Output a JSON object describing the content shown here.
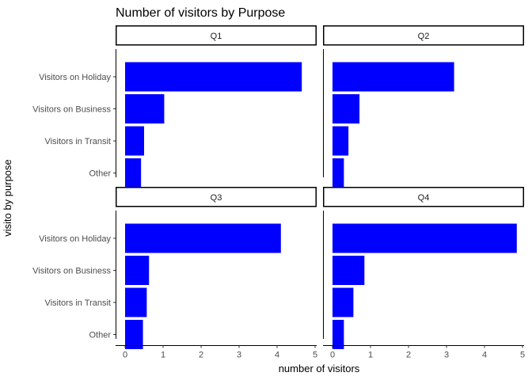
{
  "chart_data": {
    "type": "bar",
    "orientation": "horizontal",
    "title": "Number of visitors by Purpose",
    "xlabel": "number of visitors",
    "ylabel": "visito by purpose",
    "categories": [
      "Visitors on Holiday",
      "Visitors on Business",
      "Visitors in Transit",
      "Other"
    ],
    "xlim": [
      0,
      5
    ],
    "x_ticks": [
      0,
      1,
      2,
      3,
      4,
      5
    ],
    "bar_color": "#0000ff",
    "grid": false,
    "legend": "none",
    "facets": [
      {
        "name": "Q1",
        "values": [
          4.65,
          1.03,
          0.5,
          0.42
        ]
      },
      {
        "name": "Q2",
        "values": [
          3.2,
          0.71,
          0.42,
          0.3
        ]
      },
      {
        "name": "Q3",
        "values": [
          4.1,
          0.63,
          0.57,
          0.47
        ]
      },
      {
        "name": "Q4",
        "values": [
          4.85,
          0.84,
          0.55,
          0.3
        ]
      }
    ]
  }
}
